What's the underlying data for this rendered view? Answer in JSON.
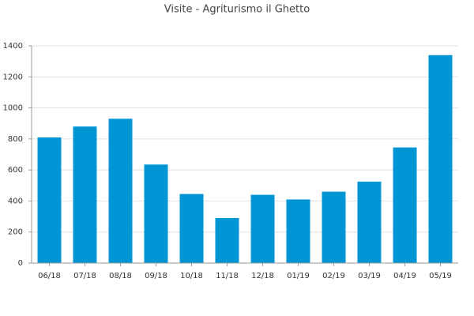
{
  "chart_data": {
    "type": "bar",
    "title": "Visite - Agriturismo il Ghetto",
    "categories": [
      "06/18",
      "07/18",
      "08/18",
      "09/18",
      "10/18",
      "11/18",
      "12/18",
      "01/19",
      "02/19",
      "03/19",
      "04/19",
      "05/19"
    ],
    "values": [
      810,
      880,
      930,
      635,
      445,
      290,
      440,
      410,
      460,
      525,
      745,
      1340
    ],
    "color": "#0096d6",
    "ylim": [
      0,
      1400
    ],
    "yticks": [
      0,
      200,
      400,
      600,
      800,
      1000,
      1200,
      1400
    ],
    "grid": true
  }
}
